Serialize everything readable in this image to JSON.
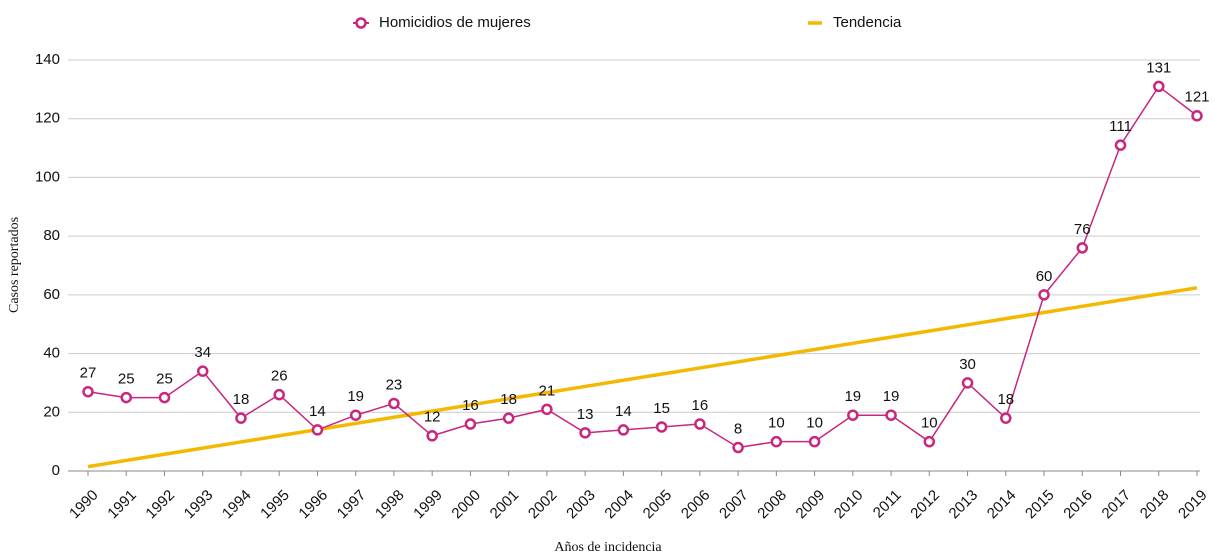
{
  "chart_data": {
    "type": "line",
    "x_label": "Años de incidencia",
    "y_label": "Casos reportados",
    "categories": [
      "1990",
      "1991",
      "1992",
      "1993",
      "1994",
      "1995",
      "1996",
      "1997",
      "1998",
      "1999",
      "2000",
      "2001",
      "2002",
      "2003",
      "2004",
      "2005",
      "2006",
      "2007",
      "2008",
      "2009",
      "2010",
      "2011",
      "2012",
      "2013",
      "2014",
      "2015",
      "2016",
      "2017",
      "2018",
      "2019"
    ],
    "series": [
      {
        "name": "Homicidios de mujeres",
        "color": "#c8267f",
        "markers": true,
        "data_labels": true,
        "values": [
          27,
          25,
          25,
          34,
          18,
          26,
          14,
          19,
          23,
          12,
          16,
          18,
          21,
          13,
          14,
          15,
          16,
          8,
          10,
          10,
          19,
          19,
          10,
          30,
          18,
          60,
          76,
          111,
          131,
          121
        ]
      },
      {
        "name": "Tendencia",
        "color": "#f5b800",
        "markers": false,
        "data_labels": false,
        "values": [
          1.5,
          3.6,
          5.7,
          7.8,
          9.9,
          12.0,
          14.1,
          16.2,
          18.3,
          20.4,
          22.5,
          24.6,
          26.7,
          28.8,
          30.9,
          33.0,
          35.1,
          37.2,
          39.3,
          41.4,
          43.5,
          45.6,
          47.7,
          49.8,
          51.9,
          54.0,
          56.1,
          58.2,
          60.3,
          62.4
        ]
      }
    ],
    "ylim": [
      0,
      140
    ],
    "yticks": [
      0,
      20,
      40,
      60,
      80,
      100,
      120,
      140
    ],
    "grid": true,
    "legend": "top"
  }
}
